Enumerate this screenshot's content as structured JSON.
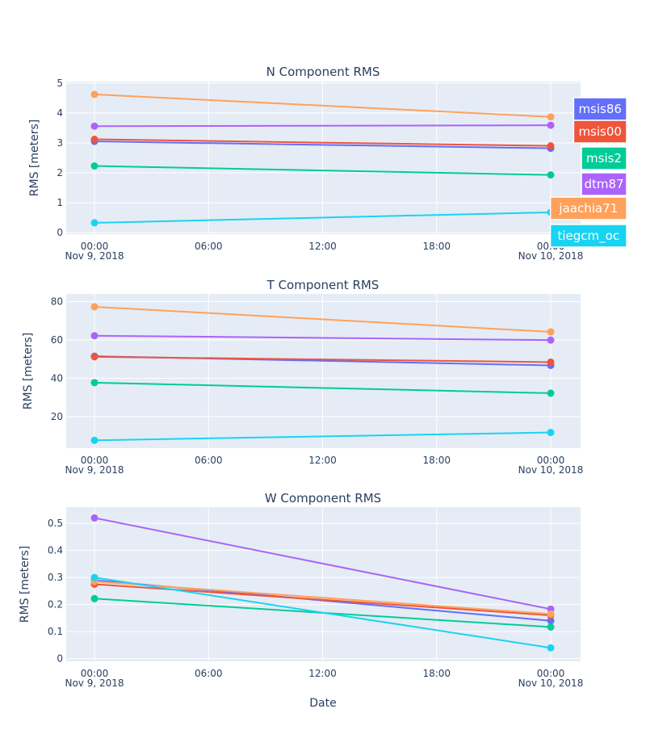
{
  "chart_data": [
    {
      "type": "line",
      "title": "N Component RMS",
      "ylabel": "RMS [meters]",
      "xlabel": "",
      "x": [
        "2018-11-09 00:00",
        "2018-11-10 00:00"
      ],
      "ylim": [
        -0.05,
        5.05
      ],
      "yticks": [
        "0",
        "1",
        "2",
        "3",
        "4",
        "5"
      ],
      "xticks": [
        {
          "value": "2018-11-09 00:00",
          "label": "00:00",
          "sublabel": "Nov 9, 2018"
        },
        {
          "value": "2018-11-09 06:00",
          "label": "06:00",
          "sublabel": ""
        },
        {
          "value": "2018-11-09 12:00",
          "label": "12:00",
          "sublabel": ""
        },
        {
          "value": "2018-11-09 18:00",
          "label": "18:00",
          "sublabel": ""
        },
        {
          "value": "2018-11-10 00:00",
          "label": "00:00",
          "sublabel": "Nov 10, 2018"
        }
      ],
      "series": [
        {
          "name": "msis86",
          "values": [
            3.05,
            2.82
          ]
        },
        {
          "name": "msis00",
          "values": [
            3.12,
            2.9
          ]
        },
        {
          "name": "msis2",
          "values": [
            2.23,
            1.93
          ]
        },
        {
          "name": "dtm87",
          "values": [
            3.56,
            3.59
          ]
        },
        {
          "name": "jaachia71",
          "values": [
            4.62,
            3.87
          ]
        },
        {
          "name": "tiegcm_oc",
          "values": [
            0.33,
            0.68
          ]
        }
      ]
    },
    {
      "type": "line",
      "title": "T Component RMS",
      "ylabel": "RMS [meters]",
      "xlabel": "",
      "x": [
        "2018-11-09 00:00",
        "2018-11-10 00:00"
      ],
      "ylim": [
        3.5,
        84
      ],
      "yticks": [
        "20",
        "40",
        "60",
        "80"
      ],
      "xticks": [
        {
          "value": "2018-11-09 00:00",
          "label": "00:00",
          "sublabel": "Nov 9, 2018"
        },
        {
          "value": "2018-11-09 06:00",
          "label": "06:00",
          "sublabel": ""
        },
        {
          "value": "2018-11-09 12:00",
          "label": "12:00",
          "sublabel": ""
        },
        {
          "value": "2018-11-09 18:00",
          "label": "18:00",
          "sublabel": ""
        },
        {
          "value": "2018-11-10 00:00",
          "label": "00:00",
          "sublabel": "Nov 10, 2018"
        }
      ],
      "series": [
        {
          "name": "msis86",
          "values": [
            51.5,
            46.7
          ]
        },
        {
          "name": "msis00",
          "values": [
            51.2,
            48.4
          ]
        },
        {
          "name": "msis2",
          "values": [
            37.7,
            32.2
          ]
        },
        {
          "name": "dtm87",
          "values": [
            62.2,
            59.9
          ]
        },
        {
          "name": "jaachia71",
          "values": [
            77.3,
            64.2
          ]
        },
        {
          "name": "tiegcm_oc",
          "values": [
            7.6,
            11.7
          ]
        }
      ]
    },
    {
      "type": "line",
      "title": "W Component RMS",
      "ylabel": "RMS [meters]",
      "xlabel": "Date",
      "x": [
        "2018-11-09 00:00",
        "2018-11-10 00:00"
      ],
      "ylim": [
        -0.01,
        0.56
      ],
      "yticks": [
        "0",
        "0.1",
        "0.2",
        "0.3",
        "0.4",
        "0.5"
      ],
      "xticks": [
        {
          "value": "2018-11-09 00:00",
          "label": "00:00",
          "sublabel": "Nov 9, 2018"
        },
        {
          "value": "2018-11-09 06:00",
          "label": "06:00",
          "sublabel": ""
        },
        {
          "value": "2018-11-09 12:00",
          "label": "12:00",
          "sublabel": ""
        },
        {
          "value": "2018-11-09 18:00",
          "label": "18:00",
          "sublabel": ""
        },
        {
          "value": "2018-11-10 00:00",
          "label": "00:00",
          "sublabel": "Nov 10, 2018"
        }
      ],
      "series": [
        {
          "name": "msis86",
          "values": [
            0.29,
            0.14
          ]
        },
        {
          "name": "msis00",
          "values": [
            0.275,
            0.16
          ]
        },
        {
          "name": "msis2",
          "values": [
            0.222,
            0.117
          ]
        },
        {
          "name": "dtm87",
          "values": [
            0.52,
            0.183
          ]
        },
        {
          "name": "jaachia71",
          "values": [
            0.285,
            0.165
          ]
        },
        {
          "name": "tiegcm_oc",
          "values": [
            0.3,
            0.04
          ]
        }
      ]
    }
  ],
  "legend": {
    "placement": "right",
    "items": [
      {
        "label": "msis86",
        "color": "#636efa"
      },
      {
        "label": "msis00",
        "color": "#ef553b"
      },
      {
        "label": "msis2",
        "color": "#00cc96"
      },
      {
        "label": "dtm87",
        "color": "#ab63fa"
      },
      {
        "label": "jaachia71",
        "color": "#ffa15a"
      },
      {
        "label": "tiegcm_oc",
        "color": "#19d3f3"
      }
    ]
  },
  "colors": {
    "plot_bg": "#e5ecf6",
    "grid": "#ffffff",
    "text": "#2a3f5f",
    "tick_text": "#2a3f5f"
  }
}
